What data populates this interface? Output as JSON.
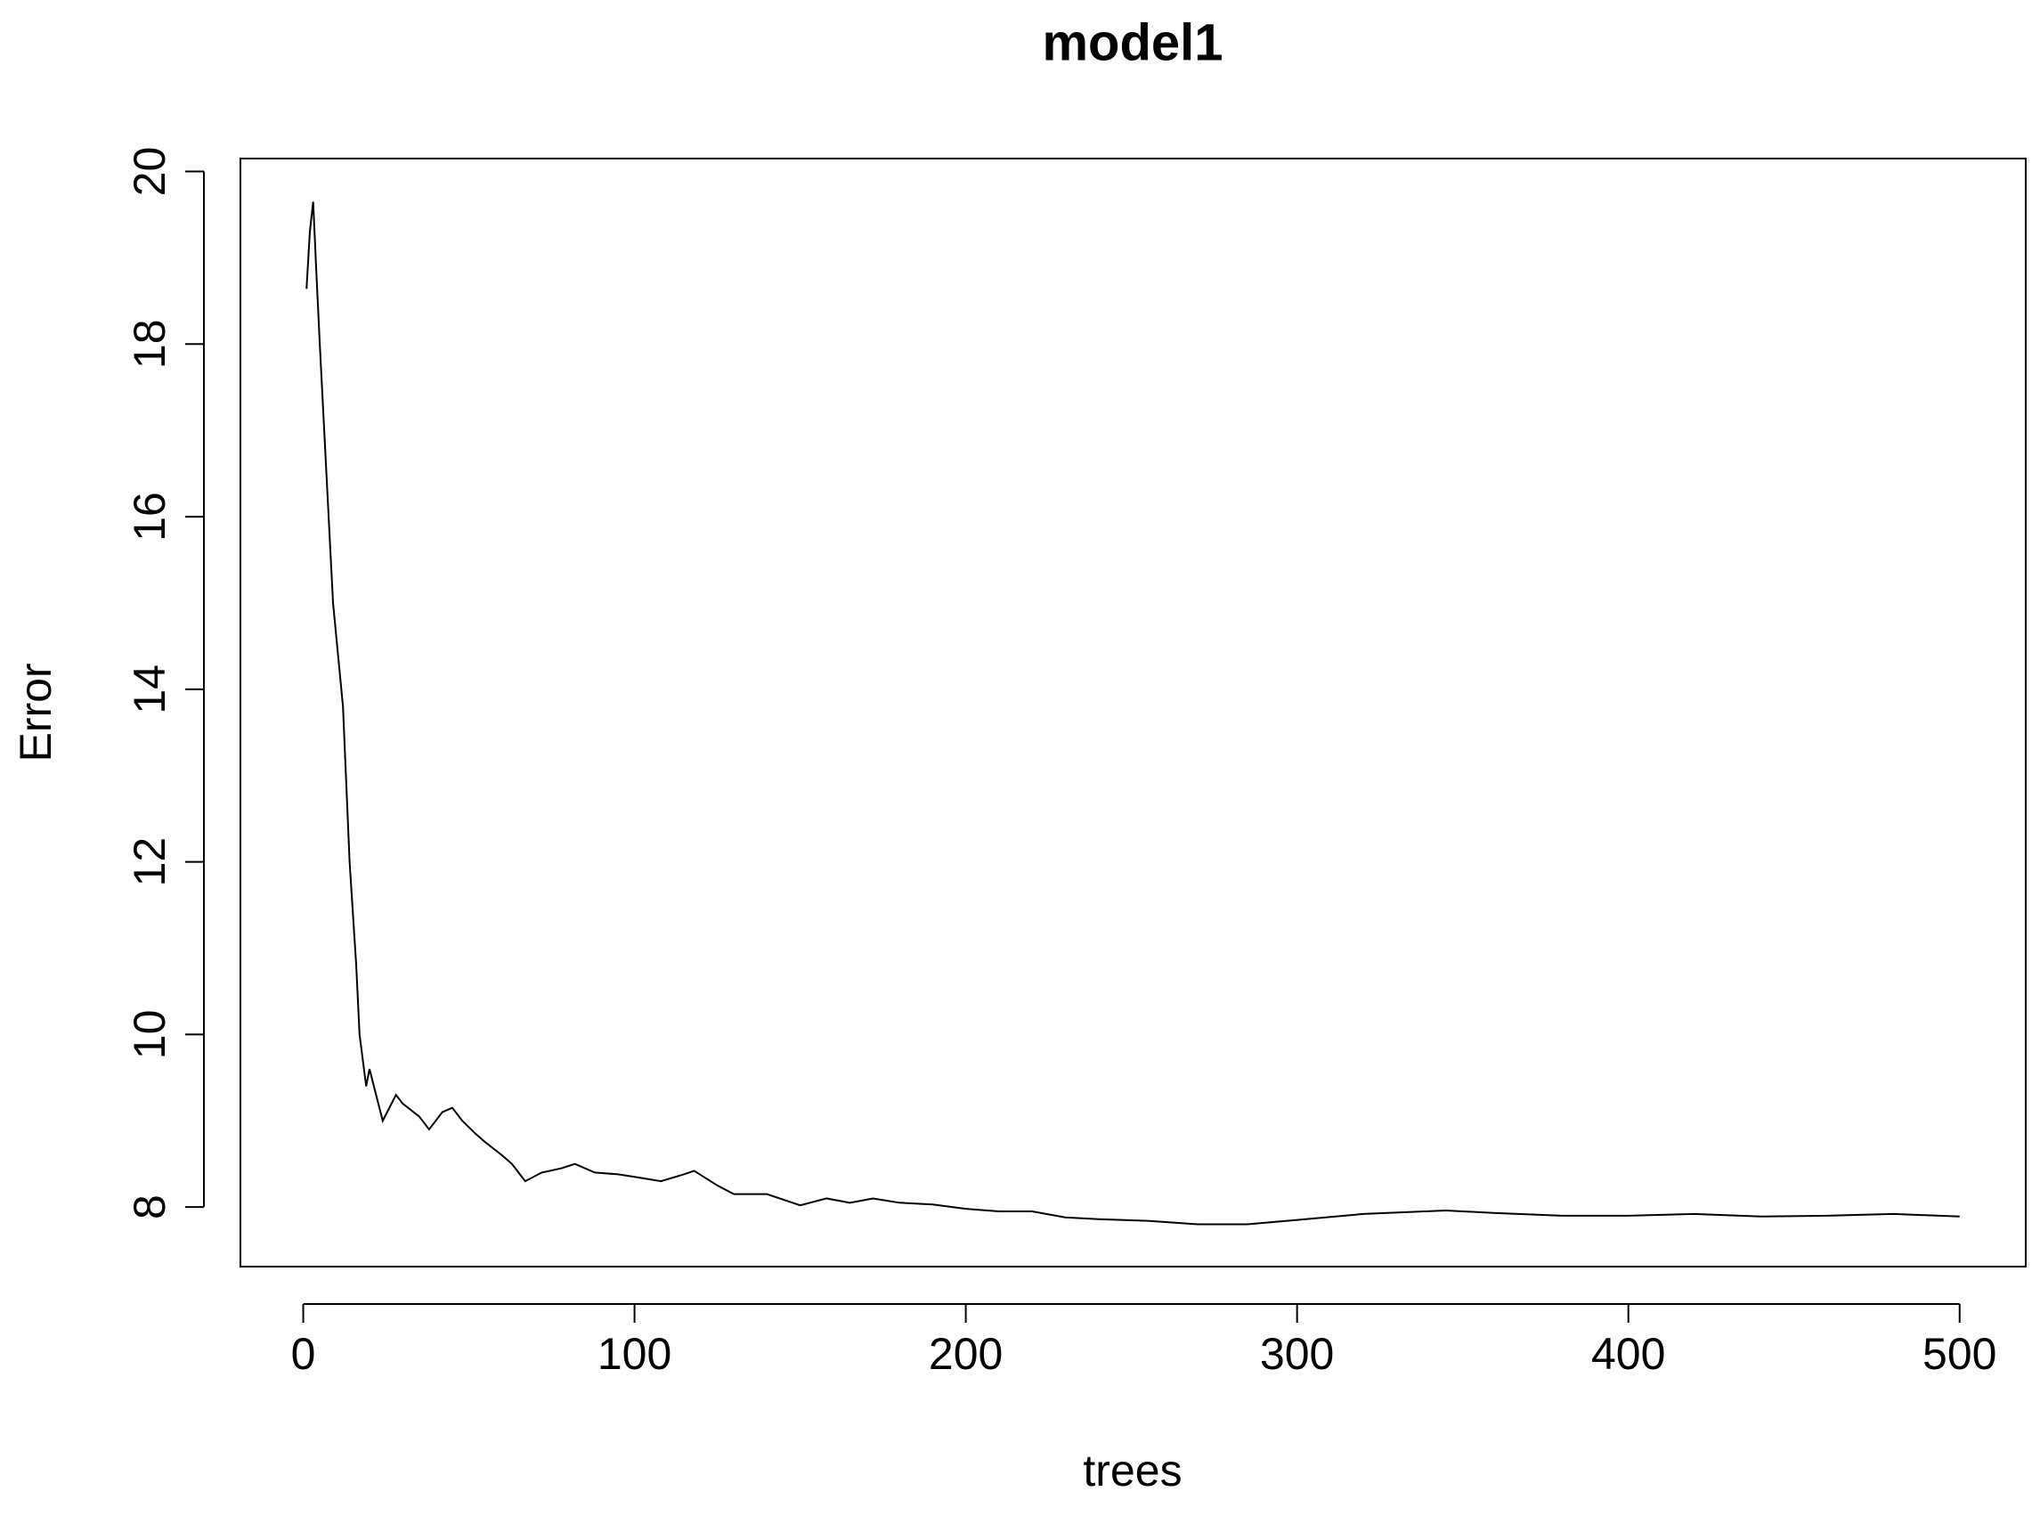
{
  "chart_data": {
    "type": "line",
    "title": "model1",
    "x_label": "trees",
    "y_label": "Error",
    "series": [
      {
        "name": "Error",
        "color": "#000000",
        "x": [
          1,
          2,
          3,
          4,
          5,
          7,
          9,
          12,
          14,
          16,
          17,
          18,
          19,
          20,
          22,
          24,
          26,
          28,
          30,
          35,
          38,
          42,
          45,
          48,
          52,
          55,
          60,
          63,
          67,
          72,
          78,
          82,
          88,
          95,
          100,
          108,
          115,
          118,
          125,
          130,
          140,
          150,
          158,
          165,
          172,
          180,
          190,
          200,
          210,
          220,
          230,
          240,
          255,
          270,
          285,
          300,
          320,
          345,
          360,
          380,
          400,
          420,
          440,
          460,
          480,
          500
        ],
        "values": [
          18.64,
          19.3,
          19.65,
          18.8,
          18.0,
          16.5,
          15.0,
          13.8,
          12.0,
          10.8,
          10.0,
          9.7,
          9.4,
          9.6,
          9.3,
          9.0,
          9.15,
          9.3,
          9.2,
          9.05,
          8.9,
          9.1,
          9.15,
          9.0,
          8.85,
          8.75,
          8.6,
          8.5,
          8.3,
          8.4,
          8.45,
          8.5,
          8.4,
          8.38,
          8.35,
          8.3,
          8.38,
          8.42,
          8.25,
          8.15,
          8.15,
          8.02,
          8.1,
          8.05,
          8.1,
          8.05,
          8.03,
          7.98,
          7.95,
          7.95,
          7.88,
          7.86,
          7.84,
          7.8,
          7.8,
          7.85,
          7.92,
          7.96,
          7.93,
          7.9,
          7.9,
          7.92,
          7.89,
          7.9,
          7.92,
          7.89
        ]
      }
    ],
    "xlim": [
      -18.96,
      519.96
    ],
    "ylim": [
      7.31,
      20.15
    ],
    "xticks": [
      0,
      100,
      200,
      300,
      400,
      500
    ],
    "yticks": [
      8,
      10,
      12,
      14,
      16,
      18,
      20
    ]
  }
}
